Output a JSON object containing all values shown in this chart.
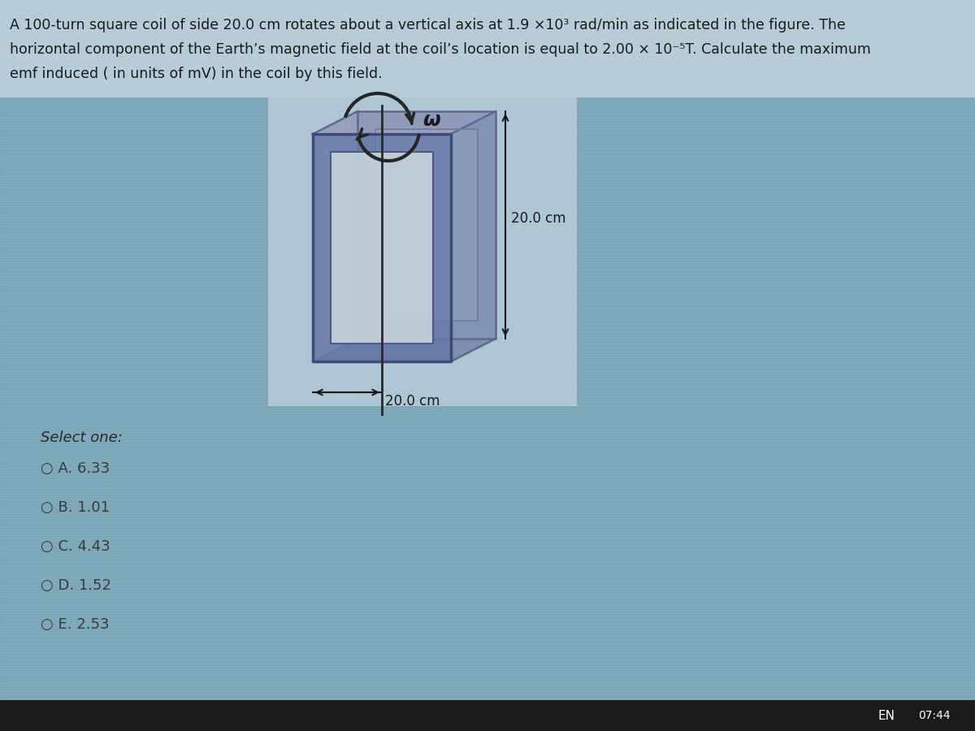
{
  "bg_color": "#7eaabb",
  "question_box_color": "#b8cdd8",
  "figure_box_color": "#b0c8d5",
  "title_text_line1": "A 100-turn square coil of side 20.0 cm rotates about a vertical axis at 1.9 ×10³ rad/min as indicated in the figure. The",
  "title_text_line2": "horizontal component of the Earth’s magnetic field at the coil’s location is equal to 2.00 × 10⁻⁵T. Calculate the maximum",
  "title_text_line3": "emf induced ( in units of mV) in the coil by this field.",
  "select_text": "Select one:",
  "options": [
    "○ A. 6.33",
    "○ B. 1.01",
    "○ C. 4.43",
    "○ D. 1.52",
    "○ E. 2.53"
  ],
  "dim_label_v": "20.0 cm",
  "dim_label_h": "20.0 cm",
  "omega_label": "ω",
  "text_color": "#1a1a1a",
  "coil_color": "#6070a0",
  "coil_inner_color": "#c8d4dc",
  "axis_color": "#2a2a2a",
  "taskbar_color": "#1a1a1a",
  "en_text": "EN",
  "time_text": "07:44"
}
